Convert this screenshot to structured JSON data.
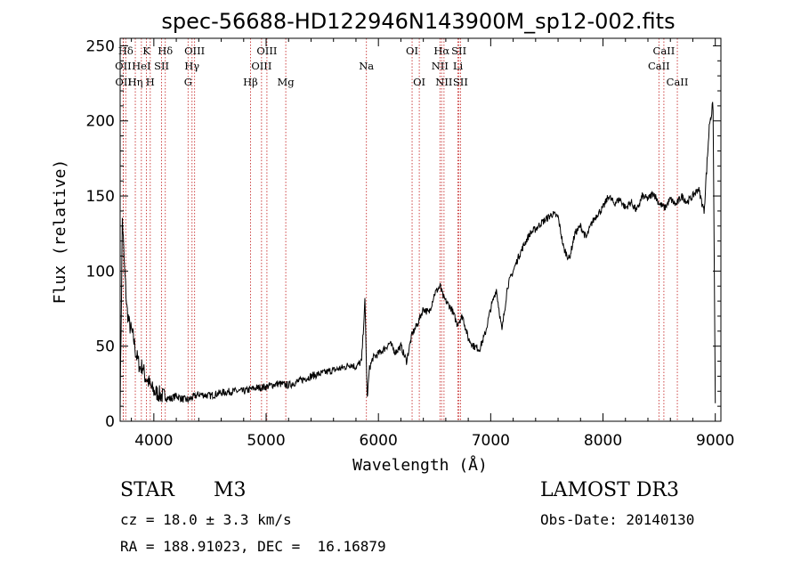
{
  "chart_data": {
    "type": "line",
    "title": "spec-56688-HD122946N143900M_sp12-002.fits",
    "xlabel": "Wavelength (Å)",
    "ylabel": "Flux (relative)",
    "xlim": [
      3700,
      9050
    ],
    "ylim": [
      0,
      255
    ],
    "xticks": [
      4000,
      5000,
      6000,
      7000,
      8000,
      9000
    ],
    "yticks": [
      0,
      50,
      100,
      150,
      200,
      250
    ],
    "series": [
      {
        "name": "flux",
        "x": [
          3700,
          3720,
          3740,
          3760,
          3780,
          3800,
          3820,
          3840,
          3860,
          3880,
          3900,
          3920,
          3940,
          3960,
          3980,
          4000,
          4050,
          4100,
          4150,
          4200,
          4250,
          4300,
          4350,
          4400,
          4500,
          4600,
          4700,
          4800,
          4900,
          5000,
          5100,
          5200,
          5300,
          5400,
          5500,
          5600,
          5700,
          5750,
          5800,
          5850,
          5880,
          5900,
          5920,
          5950,
          6000,
          6050,
          6100,
          6150,
          6200,
          6250,
          6300,
          6350,
          6400,
          6450,
          6500,
          6550,
          6580,
          6600,
          6650,
          6700,
          6750,
          6800,
          6850,
          6900,
          6950,
          7000,
          7050,
          7100,
          7150,
          7200,
          7250,
          7300,
          7350,
          7400,
          7450,
          7500,
          7550,
          7600,
          7650,
          7700,
          7750,
          7800,
          7850,
          7900,
          7950,
          8000,
          8050,
          8100,
          8150,
          8200,
          8250,
          8300,
          8350,
          8400,
          8450,
          8500,
          8550,
          8600,
          8650,
          8700,
          8750,
          8800,
          8850,
          8900,
          8950,
          8980,
          9000
        ],
        "y": [
          10,
          135,
          100,
          75,
          65,
          60,
          55,
          45,
          40,
          35,
          37,
          30,
          28,
          25,
          22,
          20,
          18,
          16,
          15,
          17,
          15,
          14,
          16,
          18,
          17,
          19,
          20,
          20,
          22,
          23,
          25,
          24,
          27,
          30,
          32,
          34,
          36,
          38,
          36,
          40,
          80,
          15,
          35,
          42,
          45,
          48,
          52,
          46,
          50,
          40,
          58,
          65,
          75,
          72,
          85,
          90,
          82,
          80,
          75,
          65,
          70,
          55,
          50,
          48,
          58,
          75,
          88,
          60,
          90,
          100,
          110,
          118,
          125,
          128,
          132,
          135,
          138,
          136,
          115,
          108,
          125,
          130,
          122,
          132,
          138,
          142,
          150,
          145,
          148,
          142,
          146,
          140,
          150,
          148,
          152,
          145,
          142,
          148,
          144,
          150,
          146,
          150,
          155,
          140,
          200,
          210,
          12
        ]
      }
    ],
    "grid": false,
    "legend": "none",
    "annotations": [
      {
        "label": "Hδ",
        "wl": 3750,
        "row": 1
      },
      {
        "label": "OII",
        "wl": 3727,
        "row": 2
      },
      {
        "label": "OII",
        "wl": 3729,
        "row": 3
      },
      {
        "label": "K",
        "wl": 3934,
        "row": 1
      },
      {
        "label": "HeI",
        "wl": 3889,
        "row": 2
      },
      {
        "label": "Hη",
        "wl": 3835,
        "row": 3
      },
      {
        "label": "Hδ",
        "wl": 4102,
        "row": 1
      },
      {
        "label": "SII",
        "wl": 4069,
        "row": 2
      },
      {
        "label": "H",
        "wl": 3968,
        "row": 3
      },
      {
        "label": "OIII",
        "wl": 4363,
        "row": 1
      },
      {
        "label": "Hγ",
        "wl": 4340,
        "row": 2
      },
      {
        "label": "G",
        "wl": 4305,
        "row": 3
      },
      {
        "label": "OIII",
        "wl": 5007,
        "row": 1
      },
      {
        "label": "OIII",
        "wl": 4959,
        "row": 2
      },
      {
        "label": "Hβ",
        "wl": 4861,
        "row": 3
      },
      {
        "label": "Mg",
        "wl": 5175,
        "row": 3
      },
      {
        "label": "Na",
        "wl": 5893,
        "row": 2
      },
      {
        "label": "OI",
        "wl": 6300,
        "row": 1
      },
      {
        "label": "OI",
        "wl": 6364,
        "row": 3
      },
      {
        "label": "Hα",
        "wl": 6563,
        "row": 1
      },
      {
        "label": "SII",
        "wl": 6717,
        "row": 1
      },
      {
        "label": "NII",
        "wl": 6548,
        "row": 2
      },
      {
        "label": "Li",
        "wl": 6708,
        "row": 2
      },
      {
        "label": "NII",
        "wl": 6584,
        "row": 3
      },
      {
        "label": "SII",
        "wl": 6731,
        "row": 3
      },
      {
        "label": "CaII",
        "wl": 8542,
        "row": 1
      },
      {
        "label": "CaII",
        "wl": 8498,
        "row": 2
      },
      {
        "label": "CaII",
        "wl": 8662,
        "row": 3
      }
    ]
  },
  "info": {
    "class": "STAR",
    "subclass": "M3",
    "survey": "LAMOST DR3",
    "cz": "cz = 18.0 ± 3.3 km/s",
    "obs_date": "Obs-Date: 20140130",
    "radec": "RA = 188.91023, DEC =  16.16879"
  }
}
